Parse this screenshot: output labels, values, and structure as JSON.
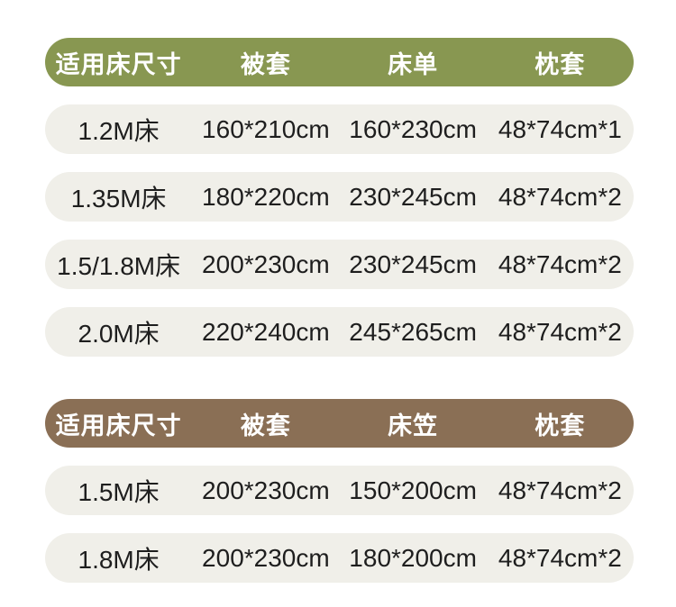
{
  "colors": {
    "page_background": "#FFFFFF",
    "table1_header_bg": "#889751",
    "table2_header_bg": "#8A6F55",
    "row_bg": "#F0EFE9",
    "header_text": "#FFFFFF",
    "row_text": "#1E1E1E"
  },
  "chart_data": [
    {
      "type": "table",
      "title": "",
      "header_color": "#889751",
      "columns": [
        "适用床尺寸",
        "被套",
        "床单",
        "枕套"
      ],
      "rows": [
        [
          "1.2M床",
          "160*210cm",
          "160*230cm",
          "48*74cm*1"
        ],
        [
          "1.35M床",
          "180*220cm",
          "230*245cm",
          "48*74cm*2"
        ],
        [
          "1.5/1.8M床",
          "200*230cm",
          "230*245cm",
          "48*74cm*2"
        ],
        [
          "2.0M床",
          "220*240cm",
          "245*265cm",
          "48*74cm*2"
        ]
      ]
    },
    {
      "type": "table",
      "title": "",
      "header_color": "#8A6F55",
      "columns": [
        "适用床尺寸",
        "被套",
        "床笠",
        "枕套"
      ],
      "rows": [
        [
          "1.5M床",
          "200*230cm",
          "150*200cm",
          "48*74cm*2"
        ],
        [
          "1.8M床",
          "200*230cm",
          "180*200cm",
          "48*74cm*2"
        ]
      ]
    }
  ]
}
